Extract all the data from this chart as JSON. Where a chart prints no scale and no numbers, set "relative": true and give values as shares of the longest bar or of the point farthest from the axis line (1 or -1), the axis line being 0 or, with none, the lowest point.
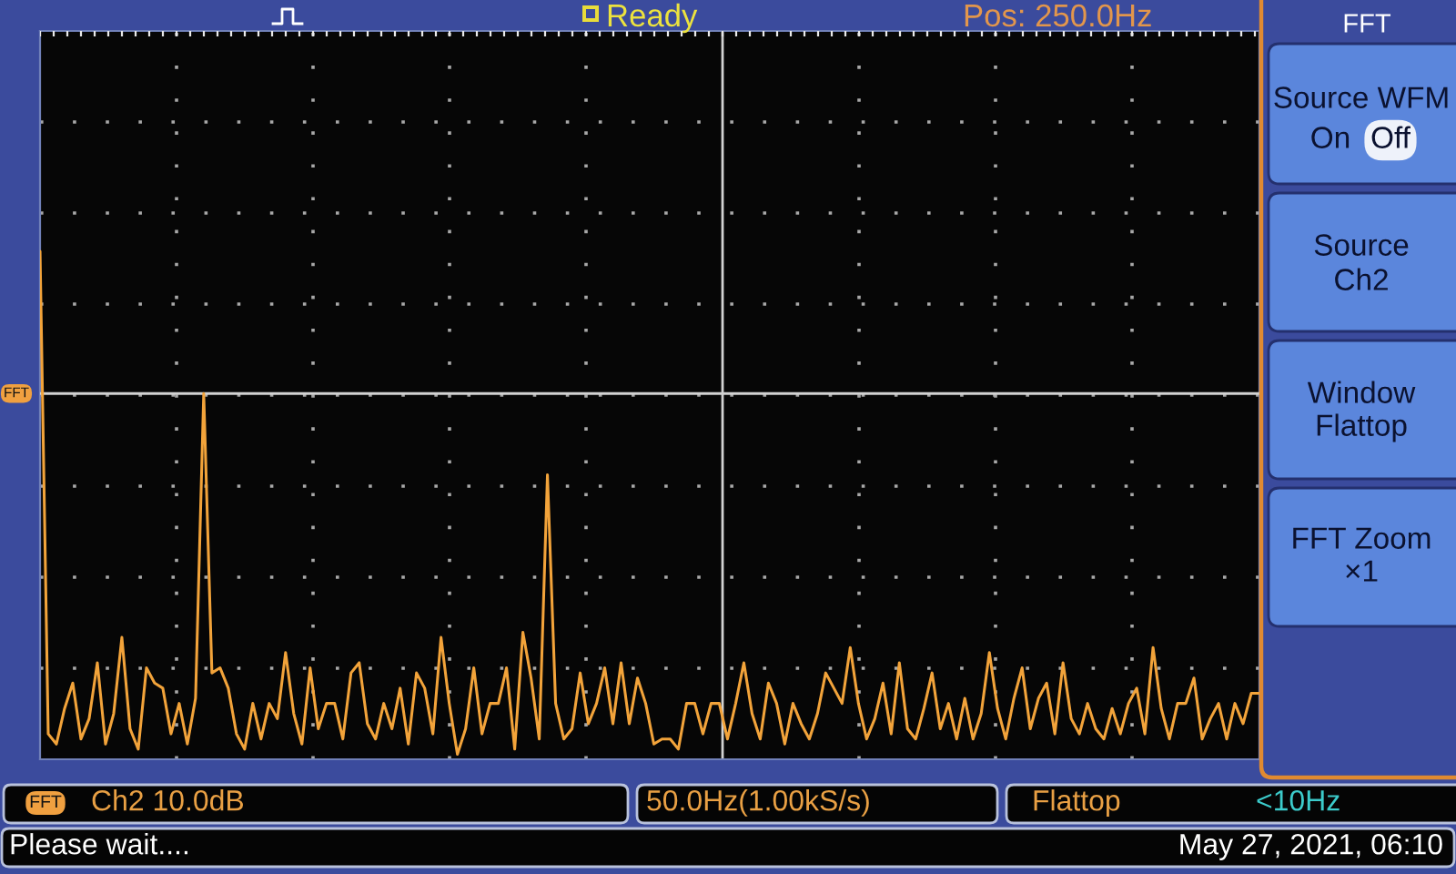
{
  "chart_data": [
    {
      "type": "line",
      "relative": true,
      "grid": true,
      "categories": [
        null,
        null,
        null,
        null,
        null,
        null,
        null,
        null,
        null,
        null,
        null,
        null,
        null,
        null,
        null,
        null,
        null,
        null,
        null,
        null,
        null,
        null,
        null,
        null,
        null,
        null,
        null,
        null,
        null,
        null,
        null,
        null,
        null,
        null,
        null,
        null,
        null,
        null,
        null,
        null,
        null,
        null,
        null,
        null,
        null,
        null,
        null,
        null,
        null,
        null,
        null,
        null,
        null,
        null,
        null,
        null,
        null,
        null,
        null,
        null,
        null,
        null,
        null,
        null,
        null,
        null,
        null,
        null,
        null,
        null,
        null,
        null,
        null,
        null,
        null,
        null,
        null,
        null,
        null,
        null,
        null,
        null,
        null,
        null,
        null,
        null,
        null,
        null,
        null,
        null,
        null,
        null,
        null,
        null,
        null,
        null,
        null,
        null,
        null,
        null,
        null,
        null,
        null,
        null,
        null,
        null,
        null,
        null,
        null,
        null,
        null,
        null,
        null,
        null,
        null,
        null,
        null,
        null,
        null,
        null,
        null,
        null,
        null,
        null,
        null,
        null,
        null,
        null,
        null,
        null,
        null,
        null,
        null,
        null,
        null,
        null,
        null,
        null,
        null,
        null,
        null,
        null,
        null,
        null,
        null,
        null,
        null,
        null,
        null,
        null
      ],
      "series": [
        {
          "color": "#f2a33a",
          "values": [
            1.0,
            0.05,
            0.03,
            0.1,
            0.15,
            0.04,
            0.08,
            0.19,
            0.03,
            0.09,
            0.24,
            0.06,
            0.02,
            0.18,
            0.15,
            0.14,
            0.05,
            0.11,
            0.03,
            0.12,
            0.72,
            0.17,
            0.18,
            0.14,
            0.05,
            0.02,
            0.11,
            0.04,
            0.11,
            0.08,
            0.21,
            0.09,
            0.03,
            0.18,
            0.06,
            0.11,
            0.11,
            0.04,
            0.17,
            0.19,
            0.07,
            0.04,
            0.11,
            0.06,
            0.14,
            0.03,
            0.17,
            0.14,
            0.05,
            0.24,
            0.11,
            0.01,
            0.06,
            0.18,
            0.05,
            0.11,
            0.11,
            0.18,
            0.02,
            0.25,
            0.16,
            0.04,
            0.56,
            0.11,
            0.04,
            0.06,
            0.17,
            0.07,
            0.11,
            0.18,
            0.07,
            0.19,
            0.07,
            0.16,
            0.11,
            0.03,
            0.04,
            0.04,
            0.02,
            0.11,
            0.11,
            0.05,
            0.11,
            0.11,
            0.04,
            0.11,
            0.19,
            0.09,
            0.04,
            0.15,
            0.11,
            0.03,
            0.11,
            0.07,
            0.04,
            0.09,
            0.17,
            0.14,
            0.11,
            0.22,
            0.11,
            0.04,
            0.08,
            0.15,
            0.05,
            0.19,
            0.06,
            0.04,
            0.1,
            0.17,
            0.06,
            0.11,
            0.04,
            0.12,
            0.04,
            0.09,
            0.21,
            0.1,
            0.04,
            0.12,
            0.18,
            0.06,
            0.12,
            0.15,
            0.05,
            0.19,
            0.08,
            0.05,
            0.11,
            0.06,
            0.04,
            0.1,
            0.05,
            0.11,
            0.14,
            0.05,
            0.22,
            0.1,
            0.04,
            0.11,
            0.11,
            0.16,
            0.04,
            0.08,
            0.11,
            0.04,
            0.11,
            0.07,
            0.13,
            0.13
          ]
        }
      ],
      "ref_lines": [
        {
          "axis": "y",
          "value": 0.72,
          "label": "FFT",
          "color": "#d2d2d2"
        }
      ],
      "annotations": [
        "Ready",
        "Pos: 250.0Hz",
        "FFT",
        "Ch2 10.0dB",
        "50.0Hz(1.00kS/s)",
        "Flattop",
        "<10Hz",
        "Please wait....",
        "May 27, 2021, 06:10"
      ]
    },
    {
      "type": "other",
      "title": "FFT",
      "annotations": [
        "Source WFM",
        "On",
        "Off",
        "Source",
        "Ch2",
        "Window",
        "Flattop",
        "FFT Zoom",
        "×1"
      ]
    }
  ]
}
